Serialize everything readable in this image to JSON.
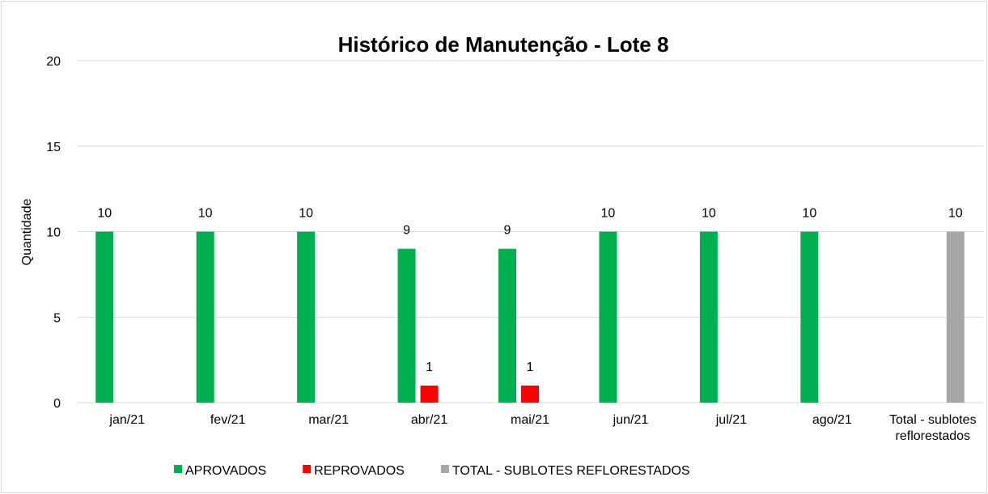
{
  "chart_data": {
    "type": "bar",
    "title": "Histórico de Manutenção - Lote 8",
    "y_label": "Quantidade",
    "categories": [
      "jan/21",
      "fev/21",
      "mar/21",
      "abr/21",
      "mai/21",
      "jun/21",
      "jul/21",
      "ago/21",
      "Total - sublotes reflorestados"
    ],
    "series": [
      {
        "name": "APROVADOS",
        "color": "#00b050",
        "values": [
          10,
          10,
          10,
          9,
          9,
          10,
          10,
          10,
          null
        ]
      },
      {
        "name": "REPROVADOS",
        "color": "#ff0000",
        "values": [
          null,
          null,
          null,
          1,
          1,
          null,
          null,
          null,
          null
        ]
      },
      {
        "name": "TOTAL - SUBLOTES REFLORESTADOS",
        "color": "#a6a6a6",
        "values": [
          null,
          null,
          null,
          null,
          null,
          null,
          null,
          null,
          10
        ]
      }
    ],
    "ylim": [
      0,
      20
    ],
    "yticks": [
      0,
      5,
      10,
      15,
      20
    ],
    "grid": true,
    "legend": "bottom"
  }
}
